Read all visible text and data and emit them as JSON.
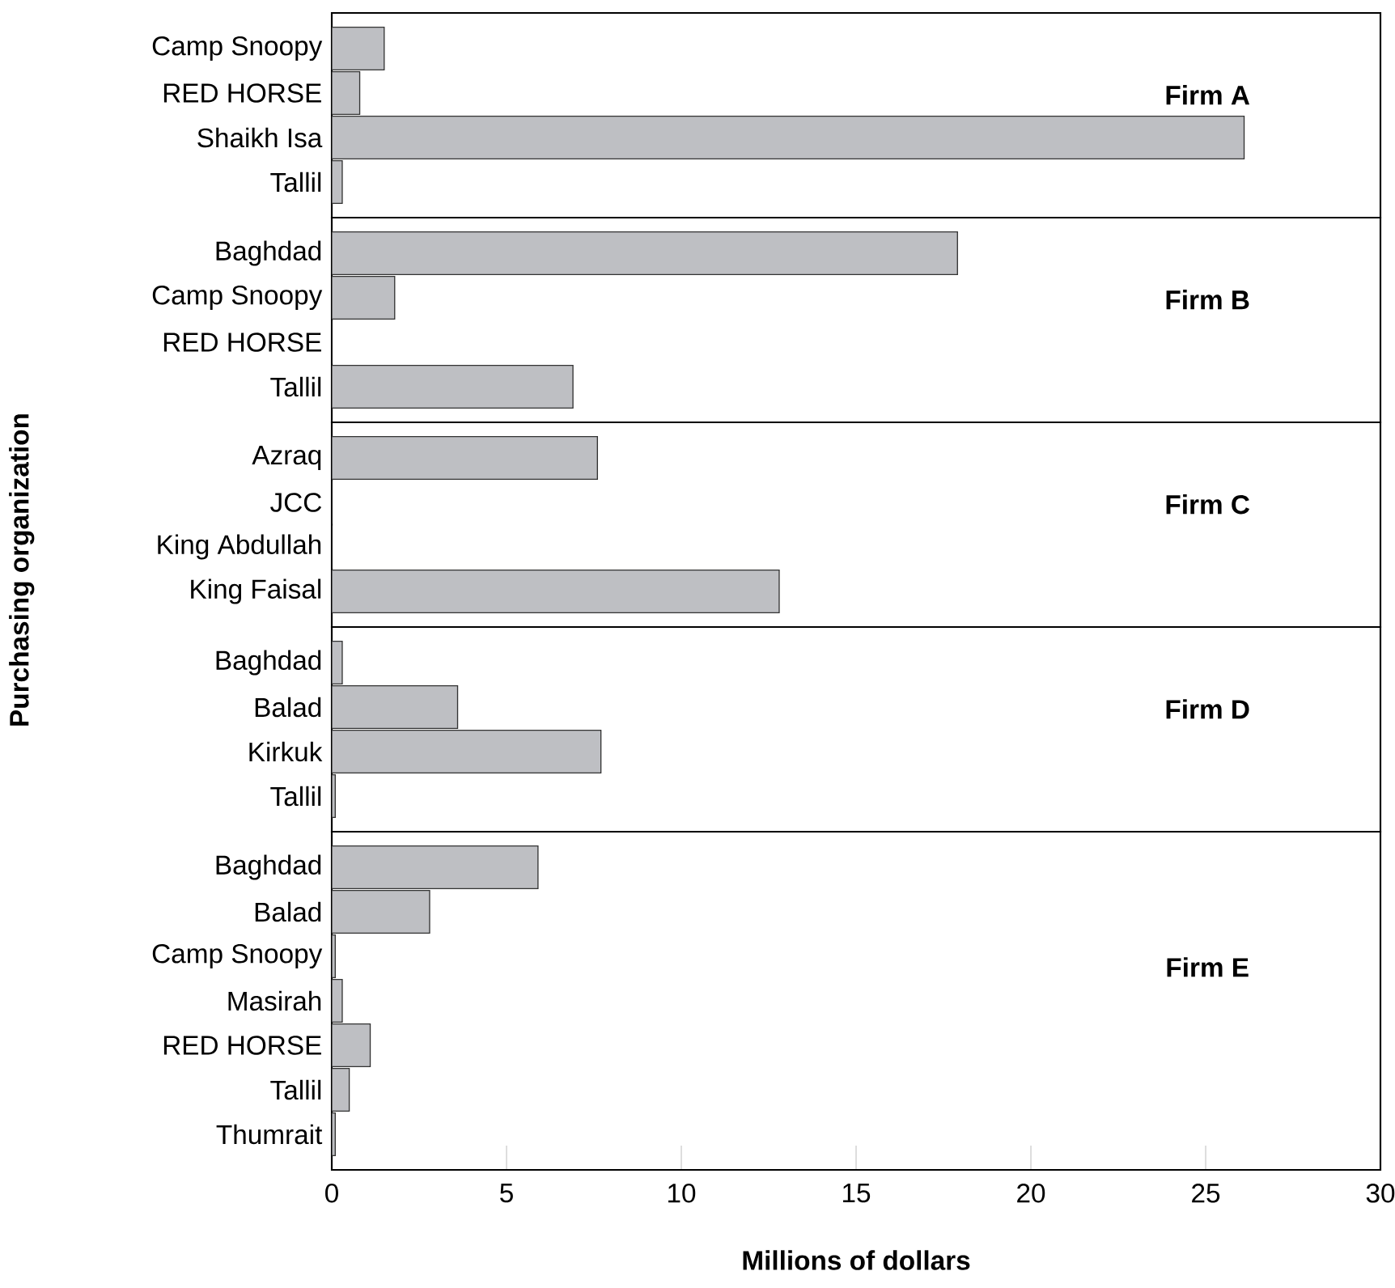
{
  "chart_data": [
    {
      "type": "bar",
      "orientation": "horizontal",
      "categories": [
        "Camp Snoopy",
        "RED HORSE",
        "Shaikh Isa",
        "Tallil"
      ],
      "values": [
        1.5,
        0.8,
        26.1,
        0.3
      ],
      "color": "#bebfc3",
      "xlim": [
        0,
        30
      ],
      "annotations": [
        "Firm A"
      ],
      "tick_labels": "y"
    },
    {
      "type": "bar",
      "orientation": "horizontal",
      "categories": [
        "Baghdad",
        "Camp Snoopy",
        "RED HORSE",
        "Tallil"
      ],
      "values": [
        17.9,
        1.8,
        0,
        6.9
      ],
      "color": "#bebfc3",
      "xlim": [
        0,
        30
      ],
      "annotations": [
        "Firm B"
      ],
      "tick_labels": "y"
    },
    {
      "type": "bar",
      "orientation": "horizontal",
      "categories": [
        "Azraq",
        "JCC",
        "King Abdullah",
        "King Faisal"
      ],
      "values": [
        7.6,
        0,
        0,
        12.8
      ],
      "color": "#bebfc3",
      "xlim": [
        0,
        30
      ],
      "annotations": [
        "Firm C"
      ],
      "tick_labels": "y",
      "ylabel": "Purchasing organization"
    },
    {
      "type": "bar",
      "orientation": "horizontal",
      "categories": [
        "Baghdad",
        "Balad",
        "Kirkuk",
        "Tallil"
      ],
      "values": [
        0.3,
        3.6,
        7.7,
        0.1
      ],
      "color": "#bebfc3",
      "xlim": [
        0,
        30
      ],
      "annotations": [
        "Firm D"
      ],
      "tick_labels": "y"
    },
    {
      "type": "bar",
      "orientation": "horizontal",
      "categories": [
        "Baghdad",
        "Balad",
        "Camp Snoopy",
        "Masirah",
        "RED HORSE",
        "Tallil",
        "Thumrait"
      ],
      "values": [
        5.9,
        2.8,
        0.1,
        0.3,
        1.1,
        0.5,
        0.1
      ],
      "color": "#bebfc3",
      "xlim": [
        0,
        30
      ],
      "xticks": [
        0,
        5,
        10,
        15,
        20,
        25,
        30
      ],
      "annotations": [
        "Firm E"
      ],
      "xlabel": "Millions of dollars"
    }
  ]
}
